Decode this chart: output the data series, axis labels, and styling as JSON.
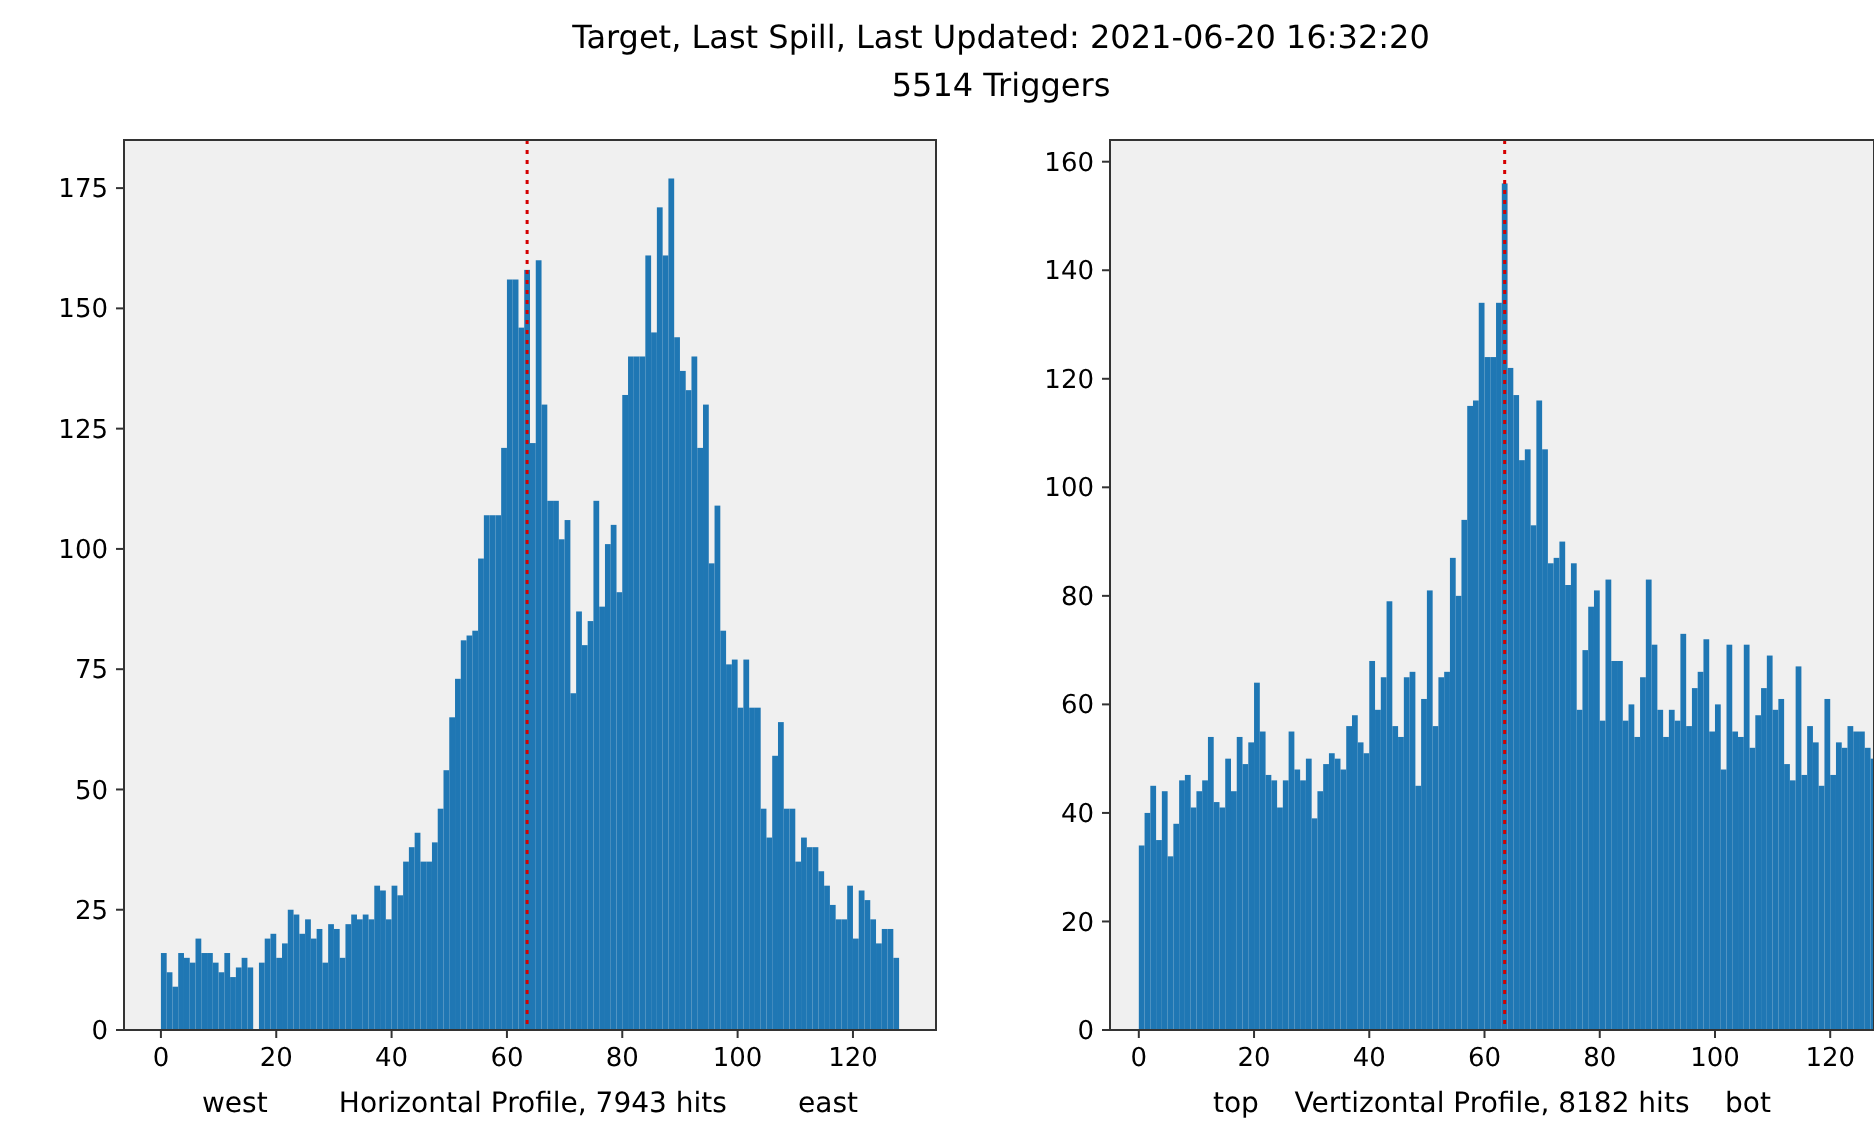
{
  "chart_data": [
    {
      "type": "histogram",
      "title": "Target, Last Spill, Last Updated: 2021-06-20 16:32:20",
      "subtitle": "5514 Triggers",
      "xlabel": "west        Horizontal Profile, 7943 hits        east",
      "color": "#1f77b4",
      "bins": [
        0,
        1,
        2,
        3,
        4,
        5,
        6,
        7,
        8,
        9,
        10,
        11,
        12,
        13,
        14,
        15,
        16,
        17,
        18,
        19,
        20,
        21,
        22,
        23,
        24,
        25,
        26,
        27,
        28,
        29,
        30,
        31,
        32,
        33,
        34,
        35,
        36,
        37,
        38,
        39,
        40,
        41,
        42,
        43,
        44,
        45,
        46,
        47,
        48,
        49,
        50,
        51,
        52,
        53,
        54,
        55,
        56,
        57,
        58,
        59,
        60,
        61,
        62,
        63,
        64,
        65,
        66,
        67,
        68,
        69,
        70,
        71,
        72,
        73,
        74,
        75,
        76,
        77,
        78,
        79,
        80,
        81,
        82,
        83,
        84,
        85,
        86,
        87,
        88,
        89,
        90,
        91,
        92,
        93,
        94,
        95,
        96,
        97,
        98,
        99,
        100,
        101,
        102,
        103,
        104,
        105,
        106,
        107,
        108,
        109,
        110,
        111,
        112,
        113,
        114,
        115,
        116,
        117,
        118,
        119,
        120,
        121,
        122,
        123,
        124,
        125,
        126,
        127,
        128
      ],
      "values": [
        16,
        12,
        9,
        16,
        15,
        14,
        19,
        16,
        16,
        14,
        12,
        16,
        11,
        13,
        15,
        13,
        0,
        14,
        19,
        20,
        15,
        18,
        25,
        24,
        20,
        23,
        19,
        21,
        14,
        22,
        21,
        15,
        22,
        24,
        23,
        24,
        23,
        30,
        29,
        23,
        30,
        28,
        35,
        38,
        41,
        35,
        35,
        39,
        46,
        54,
        65,
        73,
        81,
        82,
        83,
        98,
        107,
        107,
        107,
        121,
        156,
        156,
        146,
        158,
        122,
        160,
        130,
        110,
        110,
        102,
        106,
        70,
        87,
        80,
        85,
        110,
        88,
        101,
        105,
        91,
        132,
        140,
        140,
        140,
        161,
        145,
        171,
        161,
        177,
        144,
        137,
        133,
        140,
        121,
        130,
        97,
        109,
        83,
        76,
        77,
        67,
        77,
        67,
        67,
        46,
        40,
        57,
        64,
        46,
        46,
        35,
        40,
        38,
        38,
        33,
        30,
        26,
        23,
        23,
        30,
        19,
        29,
        27,
        23,
        18,
        21,
        21,
        15
      ],
      "xlim": [
        -6.4,
        134.4
      ],
      "ylim": [
        0,
        185
      ],
      "xticks": [
        0,
        20,
        40,
        60,
        80,
        100,
        120
      ],
      "yticks": [
        0,
        25,
        50,
        75,
        100,
        125,
        150,
        175
      ],
      "ref_lines": [
        {
          "axis": "x",
          "value": 63.5,
          "color": "#d40000",
          "line_style": "dotted"
        }
      ]
    },
    {
      "type": "histogram",
      "xlabel": "top    Vertizontal Profile, 8182 hits    bot",
      "color": "#1f77b4",
      "bins": [
        0,
        1,
        2,
        3,
        4,
        5,
        6,
        7,
        8,
        9,
        10,
        11,
        12,
        13,
        14,
        15,
        16,
        17,
        18,
        19,
        20,
        21,
        22,
        23,
        24,
        25,
        26,
        27,
        28,
        29,
        30,
        31,
        32,
        33,
        34,
        35,
        36,
        37,
        38,
        39,
        40,
        41,
        42,
        43,
        44,
        45,
        46,
        47,
        48,
        49,
        50,
        51,
        52,
        53,
        54,
        55,
        56,
        57,
        58,
        59,
        60,
        61,
        62,
        63,
        64,
        65,
        66,
        67,
        68,
        69,
        70,
        71,
        72,
        73,
        74,
        75,
        76,
        77,
        78,
        79,
        80,
        81,
        82,
        83,
        84,
        85,
        86,
        87,
        88,
        89,
        90,
        91,
        92,
        93,
        94,
        95,
        96,
        97,
        98,
        99,
        100,
        101,
        102,
        103,
        104,
        105,
        106,
        107,
        108,
        109,
        110,
        111,
        112,
        113,
        114,
        115,
        116,
        117,
        118,
        119,
        120,
        121,
        122,
        123,
        124,
        125,
        126,
        127,
        128
      ],
      "values": [
        34,
        40,
        45,
        35,
        44,
        32,
        38,
        46,
        47,
        41,
        44,
        46,
        54,
        42,
        41,
        50,
        44,
        54,
        49,
        53,
        64,
        55,
        47,
        46,
        41,
        46,
        55,
        48,
        46,
        50,
        39,
        44,
        49,
        51,
        50,
        48,
        56,
        58,
        53,
        51,
        68,
        59,
        65,
        79,
        56,
        54,
        65,
        66,
        45,
        61,
        81,
        56,
        65,
        66,
        87,
        80,
        94,
        115,
        116,
        134,
        124,
        124,
        134,
        156,
        122,
        117,
        105,
        107,
        93,
        116,
        107,
        86,
        87,
        90,
        82,
        86,
        59,
        70,
        78,
        81,
        57,
        83,
        68,
        68,
        57,
        60,
        54,
        65,
        83,
        71,
        59,
        54,
        59,
        57,
        73,
        56,
        63,
        66,
        72,
        55,
        60,
        48,
        71,
        55,
        54,
        71,
        52,
        58,
        63,
        69,
        59,
        61,
        49,
        46,
        67,
        47,
        56,
        53,
        45,
        61,
        47,
        53,
        52,
        56,
        55,
        55,
        52,
        50
      ],
      "xlim": [
        -5,
        127.6
      ],
      "ylim": [
        0,
        164
      ],
      "xticks": [
        0,
        20,
        40,
        60,
        80,
        100,
        120
      ],
      "yticks": [
        0,
        20,
        40,
        60,
        80,
        100,
        120,
        140,
        160
      ],
      "ref_lines": [
        {
          "axis": "x",
          "value": 63.5,
          "color": "#d40000",
          "line_style": "dotted"
        }
      ]
    }
  ]
}
